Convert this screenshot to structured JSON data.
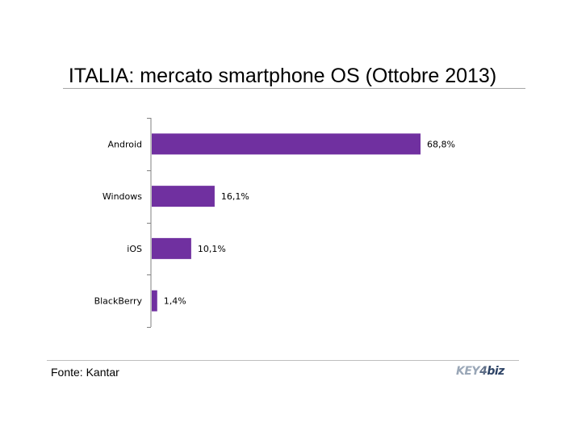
{
  "title": "ITALIA: mercato smartphone OS (Ottobre 2013)",
  "source": "Fonte: Kantar",
  "logo": {
    "part1": "KEY",
    "part2": "4",
    "part3": "biz"
  },
  "colors": {
    "bar": "#7030a0",
    "axis": "#808080",
    "text": "#000000"
  },
  "chart_data": {
    "type": "bar",
    "orientation": "horizontal",
    "title": "ITALIA: mercato smartphone OS (Ottobre 2013)",
    "categories": [
      "Android",
      "Windows",
      "iOS",
      "BlackBerry"
    ],
    "values": [
      68.8,
      16.1,
      10.1,
      1.4
    ],
    "data_labels": [
      "68,8%",
      "16,1%",
      "10,1%",
      "1,4%"
    ],
    "xlabel": "",
    "ylabel": "",
    "xlim": [
      0,
      100
    ],
    "grid": false,
    "legend": "none"
  }
}
